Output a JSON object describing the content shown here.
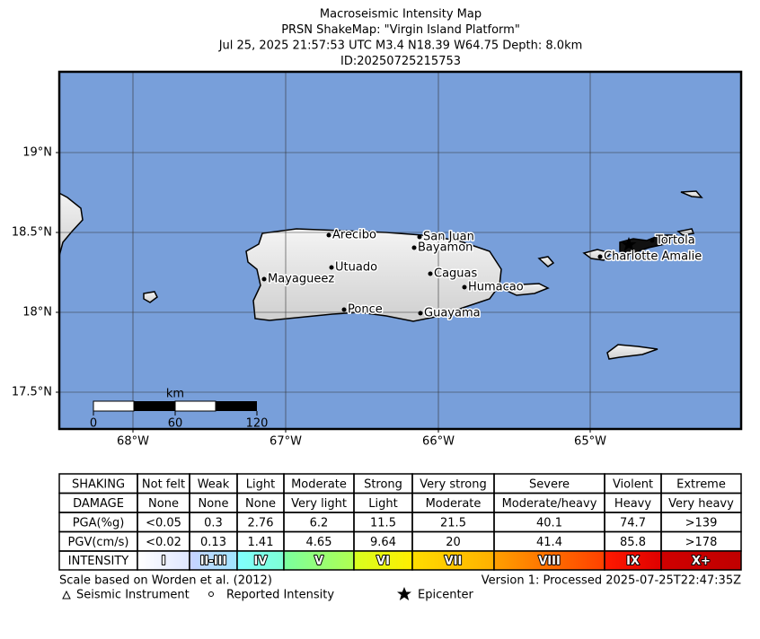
{
  "title": [
    "Macroseismic Intensity Map",
    "PRSN ShakeMap: \"Virgin Island Platform\"",
    "Jul 25, 2025 21:57:53 UTC M3.4 N18.39 W64.75 Depth: 8.0km",
    "ID:20250725215753"
  ],
  "map": {
    "lat_labels": [
      "19°N",
      "18.5°N",
      "18°N",
      "17.5°N"
    ],
    "lon_labels": [
      "68°W",
      "67°W",
      "66°W",
      "65°W"
    ],
    "cities": [
      "Arecibo",
      "San Juan",
      "Bayamon",
      "Utuado",
      "Caguas",
      "Mayagueez",
      "Humacao",
      "Ponce",
      "Guayama",
      "Tortola",
      "Charlotte Amalie"
    ],
    "scale_bar": {
      "unit": "km",
      "labels": [
        "0",
        "60",
        "120"
      ]
    }
  },
  "intensity_table": {
    "rows": [
      {
        "label": "SHAKING",
        "cells": [
          "Not felt",
          "Weak",
          "Light",
          "Moderate",
          "Strong",
          "Very strong",
          "Severe",
          "Violent",
          "Extreme"
        ]
      },
      {
        "label": "DAMAGE",
        "cells": [
          "None",
          "None",
          "None",
          "Very light",
          "Light",
          "Moderate",
          "Moderate/heavy",
          "Heavy",
          "Very heavy"
        ]
      },
      {
        "label": "PGA(%g)",
        "cells": [
          "<0.05",
          "0.3",
          "2.76",
          "6.2",
          "11.5",
          "21.5",
          "40.1",
          "74.7",
          ">139"
        ]
      },
      {
        "label": "PGV(cm/s)",
        "cells": [
          "<0.02",
          "0.13",
          "1.41",
          "4.65",
          "9.64",
          "20",
          "41.4",
          "85.8",
          ">178"
        ]
      },
      {
        "label": "INTENSITY",
        "cells": [
          "I",
          "II-III",
          "IV",
          "V",
          "VI",
          "VII",
          "VIII",
          "IX",
          "X+"
        ]
      }
    ]
  },
  "footer": {
    "scale_note": "Scale based on Worden et al. (2012)",
    "version": "Version 1: Processed 2025-07-25T22:47:35Z",
    "legend": [
      "Seismic Instrument",
      "Reported Intensity",
      "Epicenter"
    ]
  }
}
